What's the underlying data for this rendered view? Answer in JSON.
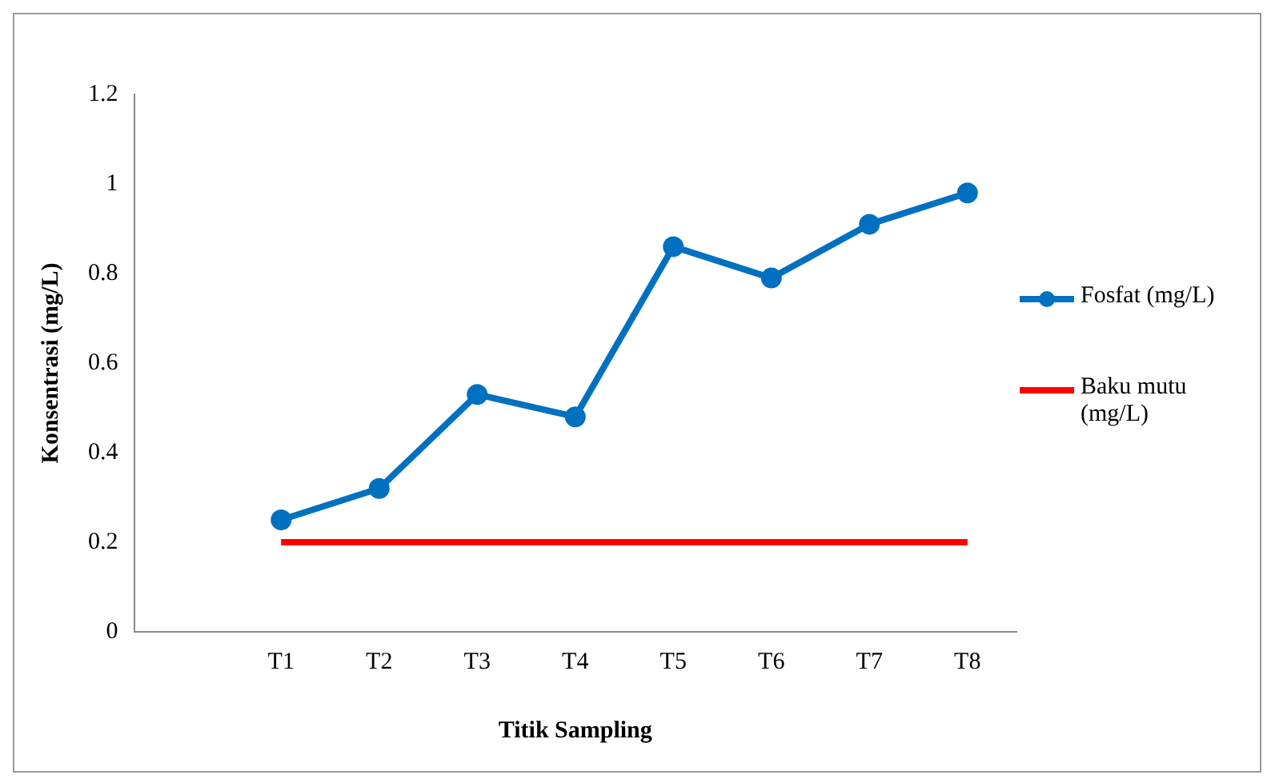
{
  "chart_data": {
    "type": "line",
    "xlabel": "Titik Sampling",
    "ylabel": "Konsentrasi (mg/L)",
    "categories": [
      null,
      "T1",
      "T2",
      "T3",
      "T4",
      "T5",
      "T6",
      "T7",
      "T8"
    ],
    "series": [
      {
        "name": "Fosfat (mg/L)",
        "color": "#0070c0",
        "marker": "circle",
        "values": [
          null,
          0.25,
          0.32,
          0.53,
          0.48,
          0.86,
          0.79,
          0.91,
          0.98
        ]
      },
      {
        "name": "Baku mutu (mg/L)",
        "color": "#ff0000",
        "marker": "none",
        "values": [
          null,
          0.2,
          0.2,
          0.2,
          0.2,
          0.2,
          0.2,
          0.2,
          0.2
        ]
      }
    ],
    "ylim": [
      0,
      1.2
    ],
    "yticks": [
      0,
      0.2,
      0.4,
      0.6,
      0.8,
      1,
      1.2
    ],
    "grid": false,
    "legend": "right",
    "line_style": "solid"
  }
}
